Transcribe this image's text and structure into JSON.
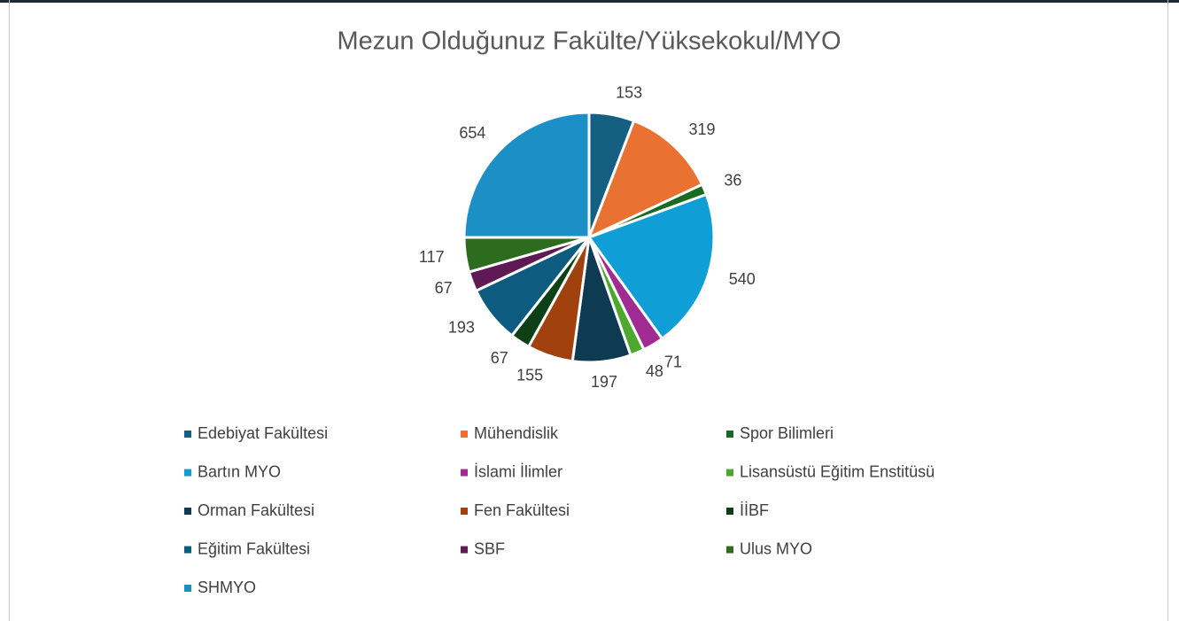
{
  "chart_data": {
    "type": "pie",
    "title": "Mezun Olduğunuz Fakülte/Yüksekokul/MYO",
    "categories": [
      "Edebiyat Fakültesi",
      "Mühendislik",
      "Spor Bilimleri",
      "Bartın MYO",
      "İslami İlimler",
      "Lisansüstü Eğitim Enstitüsü",
      "Orman Fakültesi",
      "Fen Fakültesi",
      "İİBF",
      "Eğitim Fakültesi",
      "SBF",
      "Ulus MYO",
      "SHMYO"
    ],
    "values": [
      153,
      319,
      36,
      540,
      71,
      48,
      197,
      155,
      67,
      193,
      67,
      117,
      654
    ],
    "colors": [
      "#156082",
      "#e97132",
      "#196b24",
      "#0f9ed5",
      "#a02b93",
      "#4ea72e",
      "#0e3a52",
      "#a0410e",
      "#0d4016",
      "#0d5b7f",
      "#5f1a56",
      "#2d6b1f",
      "#1b8fc6"
    ],
    "legend": "bottom"
  }
}
